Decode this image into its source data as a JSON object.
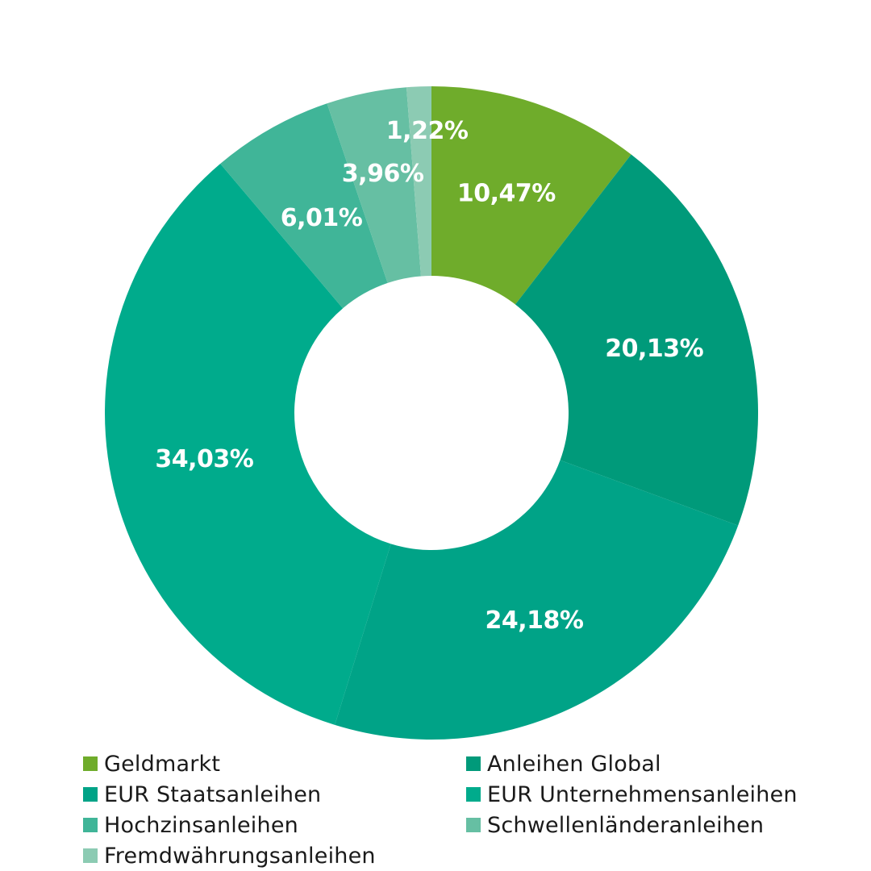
{
  "chart_data": {
    "type": "pie",
    "style": "donut",
    "title": "",
    "start": "top, clockwise",
    "legend_position": "bottom",
    "series": [
      {
        "name": "Geldmarkt",
        "value": 10.47,
        "label": "10,47%",
        "color": "#6fac2b"
      },
      {
        "name": "Anleihen Global",
        "value": 20.13,
        "label": "20,13%",
        "color": "#009a7a"
      },
      {
        "name": "EUR Staatsanleihen",
        "value": 24.18,
        "label": "24,18%",
        "color": "#00a387"
      },
      {
        "name": "EUR Unternehmensanleihen",
        "value": 34.03,
        "label": "34,03%",
        "color": "#00ab8c"
      },
      {
        "name": "Hochzinsanleihen",
        "value": 6.01,
        "label": "6,01%",
        "color": "#40b598"
      },
      {
        "name": "Schwellenländeranleihen",
        "value": 3.96,
        "label": "3,96%",
        "color": "#66bfa3"
      },
      {
        "name": "Fremdwährungsanleihen",
        "value": 1.22,
        "label": "1,22%",
        "color": "#8ccbb3"
      }
    ]
  }
}
